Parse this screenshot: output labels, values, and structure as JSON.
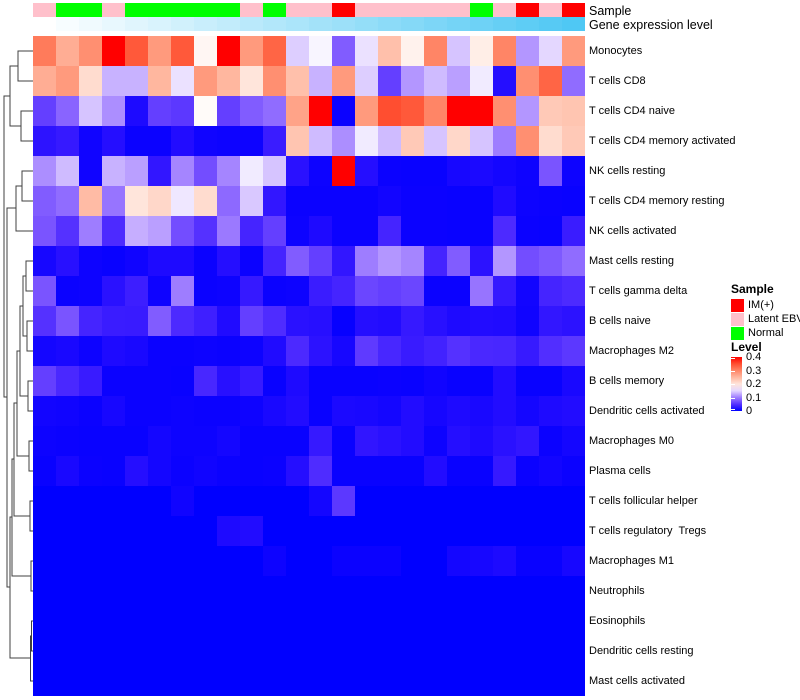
{
  "annotation": {
    "sample_label": "Sample",
    "expr_label": "Gene expression level",
    "sample_colors": {
      "IM(+)": "#ff0000",
      "Latent EBV": "#ffc0cb",
      "Normal": "#00ff00"
    },
    "sample_by_column": [
      "Latent EBV",
      "Normal",
      "Normal",
      "Latent EBV",
      "Normal",
      "Normal",
      "Normal",
      "Normal",
      "Normal",
      "Latent EBV",
      "Normal",
      "Latent EBV",
      "Latent EBV",
      "IM(+)",
      "Latent EBV",
      "Latent EBV",
      "Latent EBV",
      "Latent EBV",
      "Latent EBV",
      "Normal",
      "Latent EBV",
      "IM(+)",
      "Latent EBV",
      "IM(+)"
    ],
    "expr_gradient_start": "#ffffff",
    "expr_gradient_end": "#4fc8f4"
  },
  "legend": {
    "sample_title": "Sample",
    "sample_items": [
      {
        "label": "IM(+)",
        "color": "#ff0000"
      },
      {
        "label": "Latent EBV",
        "color": "#ffc0cb"
      },
      {
        "label": "Normal",
        "color": "#00ff00"
      }
    ],
    "level_title": "Level",
    "level_ticks": [
      "0.4",
      "0.3",
      "0.2",
      "0.1",
      "0"
    ]
  },
  "chart_data": {
    "type": "heatmap",
    "n_columns": 24,
    "colormap": {
      "low": "#0000ff",
      "mid": "#ffffff",
      "high": "#ff0000",
      "mid_value": 0.17,
      "max_value": 0.4
    },
    "legend_position": "right",
    "row_dendrogram": true,
    "rows": [
      "Monocytes",
      "T cells CD8",
      "T cells CD4 naive",
      "T cells CD4 memory activated",
      "NK cells resting",
      "T cells CD4 memory resting",
      "NK cells activated",
      "Mast cells resting",
      "T cells gamma delta",
      "B cells naive",
      "Macrophages M2",
      "B cells memory",
      "Dendritic cells activated",
      "Macrophages M0",
      "Plasma cells",
      "T cells follicular helper",
      "T cells regulatory  Tregs",
      "Macrophages M1",
      "Neutrophils",
      "Eosinophils",
      "Dendritic cells resting",
      "Mast cells activated"
    ],
    "values": [
      [
        0.31,
        0.26,
        0.29,
        0.4,
        0.34,
        0.28,
        0.34,
        0.18,
        0.4,
        0.28,
        0.33,
        0.145,
        0.165,
        0.08,
        0.155,
        0.24,
        0.185,
        0.3,
        0.14,
        0.19,
        0.3,
        0.115,
        0.15,
        0.28
      ],
      [
        0.26,
        0.28,
        0.21,
        0.13,
        0.13,
        0.25,
        0.155,
        0.28,
        0.25,
        0.2,
        0.29,
        0.24,
        0.13,
        0.28,
        0.145,
        0.06,
        0.115,
        0.135,
        0.12,
        0.16,
        0.02,
        0.29,
        0.33,
        0.09
      ],
      [
        0.06,
        0.085,
        0.14,
        0.11,
        0.015,
        0.06,
        0.055,
        0.175,
        0.06,
        0.08,
        0.09,
        0.27,
        0.4,
        0.005,
        0.28,
        0.35,
        0.34,
        0.3,
        0.4,
        0.4,
        0.29,
        0.115,
        0.23,
        0.235
      ],
      [
        0.025,
        0.03,
        0.008,
        0.02,
        0.005,
        0.005,
        0.018,
        0.008,
        0.006,
        0.006,
        0.033,
        0.235,
        0.135,
        0.11,
        0.16,
        0.135,
        0.23,
        0.14,
        0.215,
        0.14,
        0.1,
        0.29,
        0.21,
        0.23
      ],
      [
        0.11,
        0.135,
        0.008,
        0.13,
        0.12,
        0.028,
        0.105,
        0.07,
        0.105,
        0.16,
        0.14,
        0.023,
        0.006,
        0.4,
        0.02,
        0.005,
        0.004,
        0.004,
        0.012,
        0.014,
        0.01,
        0.007,
        0.075,
        0.006
      ],
      [
        0.08,
        0.09,
        0.245,
        0.095,
        0.2,
        0.215,
        0.158,
        0.21,
        0.088,
        0.142,
        0.028,
        0.005,
        0.005,
        0.005,
        0.005,
        0.009,
        0.005,
        0.005,
        0.004,
        0.004,
        0.017,
        0.006,
        0.005,
        0.004
      ],
      [
        0.075,
        0.05,
        0.1,
        0.045,
        0.128,
        0.12,
        0.07,
        0.05,
        0.098,
        0.04,
        0.06,
        0.006,
        0.016,
        0.005,
        0.005,
        0.04,
        0.005,
        0.005,
        0.004,
        0.004,
        0.045,
        0.005,
        0.004,
        0.033
      ],
      [
        0.012,
        0.022,
        0.006,
        0.004,
        0.008,
        0.016,
        0.016,
        0.005,
        0.02,
        0.005,
        0.04,
        0.08,
        0.06,
        0.028,
        0.1,
        0.115,
        0.105,
        0.04,
        0.08,
        0.024,
        0.115,
        0.07,
        0.078,
        0.09
      ],
      [
        0.075,
        0.005,
        0.006,
        0.023,
        0.035,
        0.007,
        0.1,
        0.005,
        0.006,
        0.03,
        0.005,
        0.006,
        0.033,
        0.04,
        0.065,
        0.06,
        0.065,
        0.005,
        0.005,
        0.095,
        0.03,
        0.009,
        0.04,
        0.045
      ],
      [
        0.05,
        0.075,
        0.04,
        0.033,
        0.032,
        0.08,
        0.045,
        0.036,
        0.017,
        0.06,
        0.046,
        0.023,
        0.021,
        0.003,
        0.02,
        0.018,
        0.03,
        0.022,
        0.016,
        0.018,
        0.017,
        0.008,
        0.028,
        0.024
      ],
      [
        0.01,
        0.013,
        0.006,
        0.016,
        0.013,
        0.005,
        0.005,
        0.006,
        0.005,
        0.006,
        0.017,
        0.044,
        0.024,
        0.012,
        0.057,
        0.042,
        0.032,
        0.038,
        0.05,
        0.043,
        0.042,
        0.031,
        0.048,
        0.055
      ],
      [
        0.06,
        0.043,
        0.032,
        0.005,
        0.005,
        0.005,
        0.004,
        0.042,
        0.022,
        0.031,
        0.004,
        0.016,
        0.004,
        0.004,
        0.004,
        0.005,
        0.004,
        0.008,
        0.004,
        0.004,
        0.018,
        0.004,
        0.004,
        0.013
      ],
      [
        0.009,
        0.008,
        0.005,
        0.012,
        0.005,
        0.005,
        0.006,
        0.005,
        0.005,
        0.007,
        0.013,
        0.018,
        0.004,
        0.014,
        0.013,
        0.01,
        0.018,
        0.011,
        0.016,
        0.013,
        0.018,
        0.01,
        0.016,
        0.018
      ],
      [
        0.006,
        0.005,
        0.004,
        0.004,
        0.004,
        0.01,
        0.006,
        0.006,
        0.01,
        0.004,
        0.004,
        0.004,
        0.03,
        0.004,
        0.027,
        0.023,
        0.018,
        0.006,
        0.02,
        0.016,
        0.023,
        0.028,
        0.005,
        0.01
      ],
      [
        0.004,
        0.013,
        0.005,
        0.004,
        0.02,
        0.01,
        0.005,
        0.008,
        0.005,
        0.004,
        0.005,
        0.02,
        0.046,
        0.004,
        0.004,
        0.004,
        0.004,
        0.018,
        0.004,
        0.004,
        0.03,
        0.005,
        0.009,
        0.005
      ],
      [
        0,
        0,
        0,
        0,
        0,
        0,
        0.008,
        0,
        0,
        0,
        0,
        0,
        0.01,
        0.055,
        0,
        0,
        0,
        0,
        0,
        0,
        0,
        0,
        0,
        0
      ],
      [
        0,
        0,
        0,
        0,
        0,
        0,
        0,
        0,
        0.016,
        0.018,
        0,
        0,
        0,
        0,
        0,
        0,
        0,
        0,
        0,
        0,
        0,
        0,
        0,
        0
      ],
      [
        0,
        0,
        0,
        0,
        0,
        0,
        0,
        0,
        0,
        0,
        0.006,
        0,
        0,
        0.005,
        0.005,
        0.005,
        0,
        0,
        0.01,
        0.012,
        0.015,
        0.004,
        0.004,
        0.012
      ],
      [
        0,
        0,
        0,
        0,
        0,
        0,
        0,
        0,
        0,
        0,
        0,
        0,
        0,
        0,
        0,
        0,
        0,
        0,
        0,
        0,
        0,
        0,
        0,
        0
      ],
      [
        0,
        0,
        0,
        0,
        0,
        0,
        0,
        0,
        0,
        0,
        0,
        0,
        0,
        0,
        0,
        0,
        0,
        0,
        0,
        0,
        0,
        0,
        0,
        0
      ],
      [
        0,
        0,
        0,
        0,
        0,
        0,
        0,
        0,
        0,
        0,
        0,
        0,
        0,
        0,
        0,
        0,
        0,
        0,
        0,
        0,
        0,
        0,
        0,
        0
      ],
      [
        0,
        0,
        0,
        0,
        0,
        0,
        0,
        0,
        0,
        0,
        0,
        0,
        0,
        0,
        0,
        0,
        0,
        0,
        0,
        0,
        0,
        0,
        0,
        0
      ]
    ]
  }
}
